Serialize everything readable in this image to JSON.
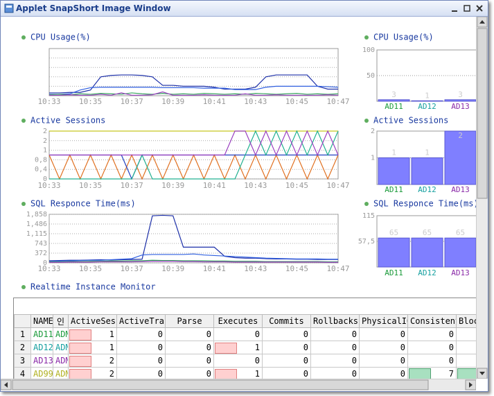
{
  "window": {
    "title": "Applet SnapShort Image Window"
  },
  "chart_data": [
    {
      "type": "line",
      "title": "CPU Usage(%)",
      "categories": [
        "10:33",
        null,
        null,
        null,
        "10:35",
        null,
        null,
        null,
        "10:37",
        null,
        null,
        null,
        "10:39",
        null,
        null,
        null,
        "10:41",
        null,
        null,
        null,
        "10:43",
        null,
        null,
        null,
        "10:45",
        null,
        null,
        null,
        "10:47"
      ],
      "ylim": [
        0,
        100
      ],
      "grid": true,
      "series": [
        {
          "color": "#1c2fa8",
          "values": [
            6,
            6,
            7,
            7,
            12,
            40,
            43,
            44,
            44,
            43,
            40,
            22,
            22,
            20,
            20,
            20,
            18,
            14,
            14,
            14,
            18,
            40,
            44,
            44,
            44,
            44,
            20,
            14,
            14
          ]
        },
        {
          "color": "#2f5fe0",
          "values": [
            3,
            3,
            4,
            12,
            17,
            18,
            18,
            18,
            18,
            18,
            18,
            17,
            17,
            17,
            17,
            16,
            16,
            16,
            13,
            13,
            13,
            18,
            20,
            20,
            20,
            20,
            20,
            19,
            18
          ]
        },
        {
          "color": "#3aa860",
          "values": [
            2,
            3,
            2,
            4,
            3,
            5,
            4,
            3,
            6,
            4,
            3,
            5,
            3,
            4,
            3,
            5,
            4,
            3,
            4,
            3,
            5,
            4,
            3,
            4,
            5,
            3,
            4,
            3,
            4
          ]
        },
        {
          "color": "#9a40c0",
          "values": [
            1,
            1,
            2,
            1,
            1,
            3,
            1,
            6,
            1,
            1,
            2,
            8,
            1,
            1,
            1,
            2,
            1,
            1,
            1,
            4,
            1,
            1,
            2,
            1,
            1,
            1,
            1,
            2,
            1
          ]
        }
      ]
    },
    {
      "type": "bar",
      "title": "CPU Usage(%)",
      "categories": [
        "AD11",
        "AD12",
        "AD13"
      ],
      "values": [
        3,
        1,
        3
      ],
      "label_colors": [
        "#1a9a3a",
        "#16a0a0",
        "#8a2aa8"
      ],
      "color": "#7f7fff",
      "ylim": [
        0,
        100
      ],
      "yticks": [
        50,
        100
      ],
      "grid": true
    },
    {
      "type": "line",
      "title": "Active Sessions",
      "categories": [
        "10:33",
        null,
        null,
        null,
        "10:35",
        null,
        null,
        null,
        "10:37",
        null,
        null,
        null,
        "10:39",
        null,
        null,
        null,
        "10:41",
        null,
        null,
        null,
        "10:43",
        null,
        null,
        null,
        "10:45",
        null,
        null,
        null,
        "10:47"
      ],
      "ylim": [
        0,
        2
      ],
      "grid": true,
      "yticks": [
        0,
        {
          "value": 0.4,
          "label": "0,4"
        },
        {
          "value": 0.8,
          "label": "0,8"
        },
        {
          "value": 1.2,
          "label": "1"
        },
        {
          "value": 1.6,
          "label": "2"
        },
        2
      ],
      "series": [
        {
          "color": "#c8c820",
          "values": [
            2,
            2,
            2,
            2,
            2,
            2,
            2,
            2,
            2,
            2,
            2,
            2,
            2,
            2,
            2,
            2,
            2,
            2,
            2,
            2,
            2,
            2,
            2,
            2,
            2,
            2,
            2,
            2,
            2
          ]
        },
        {
          "color": "#e07020",
          "values": [
            1,
            0,
            1,
            0,
            1,
            0,
            1,
            0,
            1,
            0,
            1,
            0,
            1,
            0,
            1,
            0,
            1,
            0,
            1,
            0,
            1,
            0,
            1,
            0,
            1,
            0,
            1,
            0,
            1
          ]
        },
        {
          "color": "#2040c0",
          "values": [
            1,
            1,
            1,
            1,
            1,
            1,
            1,
            1,
            0,
            1,
            1,
            1,
            1,
            1,
            1,
            1,
            1,
            1,
            1,
            1,
            1,
            1,
            1,
            1,
            1,
            1,
            1,
            1,
            1
          ]
        },
        {
          "color": "#20b090",
          "values": [
            0,
            0,
            0,
            0,
            0,
            0,
            0,
            0,
            0,
            1,
            0,
            0,
            0,
            0,
            0,
            0,
            0,
            0,
            0,
            1,
            2,
            1,
            2,
            1,
            2,
            1,
            2,
            1,
            2
          ]
        },
        {
          "color": "#9a40c0",
          "values": [
            1,
            1,
            1,
            1,
            1,
            1,
            1,
            1,
            1,
            1,
            1,
            1,
            1,
            1,
            1,
            1,
            1,
            1,
            2,
            2,
            1,
            2,
            1,
            2,
            1,
            2,
            1,
            2,
            1
          ]
        }
      ]
    },
    {
      "type": "bar",
      "title": "Active Sessions",
      "categories": [
        "AD11",
        "AD12",
        "AD13"
      ],
      "values": [
        1,
        1,
        2
      ],
      "label_colors": [
        "#1a9a3a",
        "#16a0a0",
        "#8a2aa8"
      ],
      "color": "#7f7fff",
      "ylim": [
        0,
        2
      ],
      "yticks": [
        1,
        2
      ],
      "grid": true
    },
    {
      "type": "line",
      "title": "SQL Responce Time(ms)",
      "categories": [
        "10:33",
        null,
        null,
        null,
        "10:35",
        null,
        null,
        null,
        "10:37",
        null,
        null,
        null,
        "10:39",
        null,
        null,
        null,
        "10:41",
        null,
        null,
        null,
        "10:43",
        null,
        null,
        null,
        "10:45",
        null,
        null,
        null,
        "10:47"
      ],
      "ylim": [
        0,
        1858
      ],
      "grid": true,
      "yticks": [
        0,
        372,
        743,
        {
          "value": 1115,
          "label": "1,115"
        },
        {
          "value": 1486,
          "label": "1,486"
        },
        {
          "value": 1858,
          "label": "1,858"
        }
      ],
      "series": [
        {
          "color": "#1c2fa8",
          "values": [
            80,
            90,
            100,
            100,
            110,
            120,
            110,
            120,
            130,
            140,
            1800,
            1820,
            1800,
            600,
            600,
            600,
            600,
            250,
            200,
            180,
            180,
            160,
            150,
            150,
            140,
            140,
            130,
            130,
            130
          ]
        },
        {
          "color": "#2f5fe0",
          "values": [
            60,
            70,
            80,
            90,
            100,
            100,
            120,
            140,
            160,
            300,
            320,
            320,
            320,
            320,
            340,
            300,
            280,
            260,
            240,
            220,
            200,
            180,
            170,
            160,
            150,
            150,
            150,
            140,
            140
          ]
        },
        {
          "color": "#3aa860",
          "values": [
            40,
            40,
            50,
            50,
            60,
            60,
            70,
            70,
            80,
            80,
            100,
            90,
            90,
            80,
            80,
            80,
            70,
            70,
            60,
            60,
            60,
            50,
            50,
            50,
            50,
            50,
            50,
            40,
            40
          ]
        },
        {
          "color": "#9a40c0",
          "values": [
            20,
            20,
            30,
            30,
            30,
            40,
            40,
            40,
            40,
            50,
            60,
            60,
            60,
            50,
            50,
            40,
            40,
            40,
            30,
            30,
            30,
            30,
            30,
            30,
            30,
            30,
            30,
            20,
            20
          ]
        }
      ]
    },
    {
      "type": "bar",
      "title": "SQL Responce Time(ms)",
      "categories": [
        "AD11",
        "AD12",
        "AD13"
      ],
      "values": [
        65,
        65,
        65
      ],
      "label_colors": [
        "#1a9a3a",
        "#16a0a0",
        "#8a2aa8"
      ],
      "color": "#7f7fff",
      "ylim": [
        0,
        115
      ],
      "yticks": [
        {
          "value": 57.5,
          "label": "57,5"
        },
        115
      ],
      "grid": true
    }
  ],
  "table": {
    "title": "Realtime Instance Monitor",
    "columns": [
      "NAME",
      "인",
      "ActiveSessi",
      "ActiveTrans",
      "Parse",
      "Executes",
      "Commits",
      "Rollbacks",
      "PhysicalIO",
      "ConsistentG",
      "Block"
    ],
    "name_colors": [
      "#1a9a3a",
      "#16a0a0",
      "#8a2aa8",
      "#b0b020"
    ],
    "rows": [
      [
        "1",
        "AD11",
        "ADM",
        1,
        0,
        0,
        0,
        0,
        0,
        0,
        0
      ],
      [
        "2",
        "AD12",
        "ADM",
        1,
        0,
        0,
        1,
        0,
        0,
        0,
        0
      ],
      [
        "3",
        "AD13",
        "ADM",
        2,
        0,
        0,
        0,
        0,
        0,
        0,
        0
      ],
      [
        "4",
        "AD99",
        "ADM",
        2,
        0,
        0,
        1,
        0,
        0,
        0,
        7
      ]
    ]
  }
}
